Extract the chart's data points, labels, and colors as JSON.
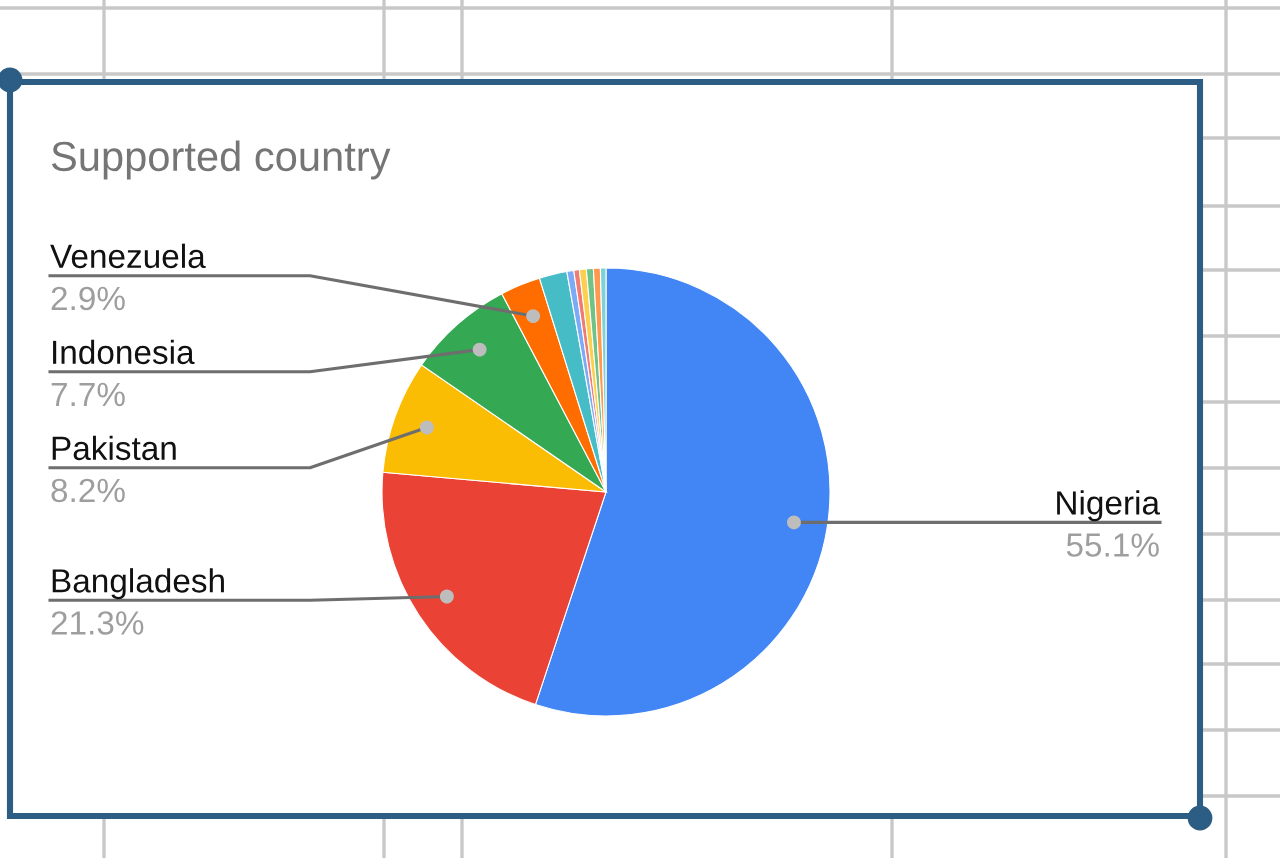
{
  "chart_data": {
    "type": "pie",
    "title": "Supported country",
    "categories": [
      "Nigeria",
      "Bangladesh",
      "Pakistan",
      "Indonesia",
      "Venezuela",
      null,
      null,
      null,
      null,
      null,
      null,
      null
    ],
    "values": [
      55.1,
      21.3,
      8.2,
      7.7,
      2.9,
      2.0,
      0.5,
      0.4,
      0.5,
      0.5,
      0.5,
      0.4
    ],
    "colors": [
      "#4285f4",
      "#ea4335",
      "#fbbc04",
      "#34a853",
      "#ff6d01",
      "#46bdc6",
      "#7baaf7",
      "#f07b72",
      "#fcd04f",
      "#71c287",
      "#ff994d",
      "#7ed1d7"
    ],
    "value_labels": [
      "55.1%",
      "21.3%",
      "8.2%",
      "7.7%",
      "2.9%",
      null,
      null,
      null,
      null,
      null,
      null,
      null
    ]
  }
}
